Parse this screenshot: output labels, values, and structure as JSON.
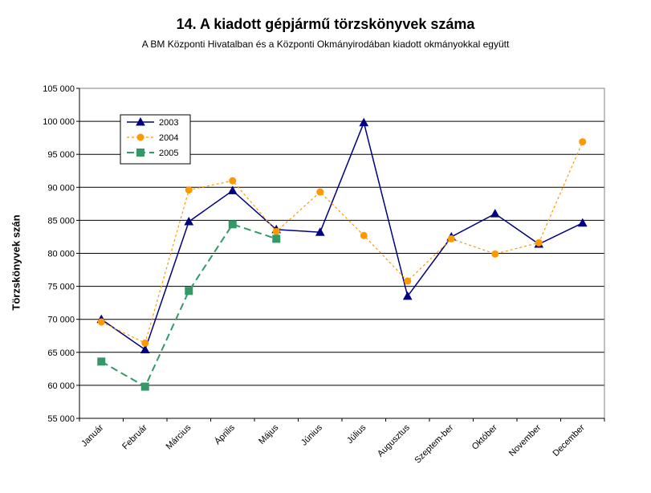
{
  "chart_data": {
    "type": "line",
    "title": "14. A  kiadott gépjármű  törzskönyvek száma",
    "subtitle": "A BM Központi Hivatalban és a Központi Okmányirodában kiadott okmányokkal együtt",
    "ylabel": "Törzskönyvek szán",
    "xlabel": "",
    "ylim": [
      55000,
      105000
    ],
    "yticks": [
      "55 000",
      "60 000",
      "65 000",
      "70 000",
      "75 000",
      "80 000",
      "85 000",
      "90 000",
      "95 000",
      "100 000",
      "105 000"
    ],
    "categories": [
      "Január",
      "Február",
      "Március",
      "Április",
      "Május",
      "Június",
      "Július",
      "Augusztus",
      "Szeptem-ber",
      "Október",
      "November",
      "December"
    ],
    "grid": true,
    "legend_position": "top-left",
    "series": [
      {
        "name": "2003",
        "color": "#000080",
        "dash": "solid",
        "marker": "triangle",
        "values": [
          70000,
          65400,
          84800,
          89500,
          83600,
          83200,
          99800,
          73500,
          82500,
          86000,
          81400,
          84600
        ]
      },
      {
        "name": "2004",
        "color": "#FF9900",
        "dash": "dotted",
        "marker": "circle",
        "values": [
          69600,
          66400,
          89600,
          91000,
          83300,
          89300,
          82700,
          75800,
          82200,
          79900,
          81600,
          96900
        ]
      },
      {
        "name": "2005",
        "color": "#339966",
        "dash": "dashed",
        "marker": "square",
        "values": [
          63600,
          59800,
          74300,
          84400,
          82200,
          null,
          null,
          null,
          null,
          null,
          null,
          null
        ]
      }
    ]
  }
}
